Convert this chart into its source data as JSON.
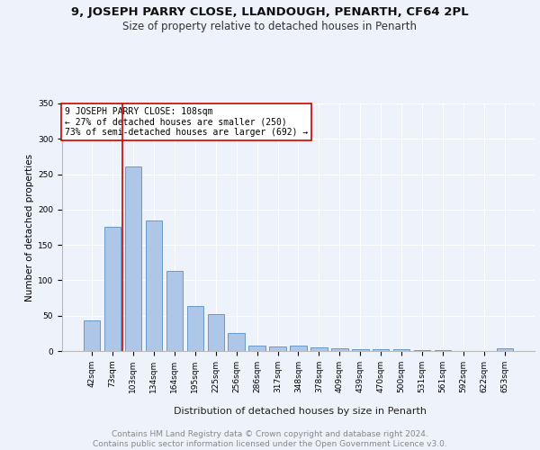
{
  "title1": "9, JOSEPH PARRY CLOSE, LLANDOUGH, PENARTH, CF64 2PL",
  "title2": "Size of property relative to detached houses in Penarth",
  "xlabel": "Distribution of detached houses by size in Penarth",
  "ylabel": "Number of detached properties",
  "categories": [
    "42sqm",
    "73sqm",
    "103sqm",
    "134sqm",
    "164sqm",
    "195sqm",
    "225sqm",
    "256sqm",
    "286sqm",
    "317sqm",
    "348sqm",
    "378sqm",
    "409sqm",
    "439sqm",
    "470sqm",
    "500sqm",
    "531sqm",
    "561sqm",
    "592sqm",
    "622sqm",
    "653sqm"
  ],
  "values": [
    43,
    176,
    261,
    184,
    113,
    64,
    52,
    26,
    8,
    7,
    8,
    5,
    4,
    3,
    2,
    2,
    1,
    1,
    0,
    0,
    4
  ],
  "bar_color": "#aec6e8",
  "bar_edge_color": "#5a8fc2",
  "annotation_line1": "9 JOSEPH PARRY CLOSE: 108sqm",
  "annotation_line2": "← 27% of detached houses are smaller (250)",
  "annotation_line3": "73% of semi-detached houses are larger (692) →",
  "red_line_x": 1.5,
  "annotation_box_color": "#ffffff",
  "annotation_box_edge": "#cc0000",
  "vline_color": "#cc0000",
  "ylim": [
    0,
    350
  ],
  "footer": "Contains HM Land Registry data © Crown copyright and database right 2024.\nContains public sector information licensed under the Open Government Licence v3.0.",
  "title1_fontsize": 9.5,
  "title2_fontsize": 8.5,
  "xlabel_fontsize": 8,
  "ylabel_fontsize": 7.5,
  "tick_fontsize": 6.5,
  "annotation_fontsize": 7,
  "footer_fontsize": 6.5,
  "background_color": "#eef2fb"
}
